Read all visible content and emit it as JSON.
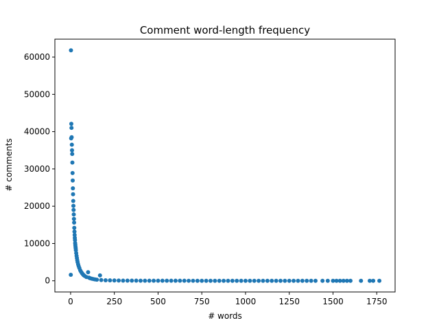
{
  "chart_data": {
    "type": "scatter",
    "title": "Comment word-length frequency",
    "xlabel": "# words",
    "ylabel": "# comments",
    "xlim": [
      -90,
      1855
    ],
    "ylim": [
      -3000,
      64800
    ],
    "xticks": [
      0,
      250,
      500,
      750,
      1000,
      1250,
      1500,
      1750
    ],
    "yticks": [
      0,
      10000,
      20000,
      30000,
      40000,
      50000,
      60000
    ],
    "grid": false,
    "marker_color": "#1f77b4",
    "series": [
      {
        "points": [
          [
            1,
            1600
          ],
          [
            2,
            61800
          ],
          [
            3,
            38200
          ],
          [
            4,
            42100
          ],
          [
            5,
            41000
          ],
          [
            6,
            38500
          ],
          [
            7,
            36500
          ],
          [
            8,
            35000
          ],
          [
            9,
            34000
          ],
          [
            10,
            31700
          ],
          [
            11,
            28900
          ],
          [
            12,
            26900
          ],
          [
            13,
            24800
          ],
          [
            14,
            23200
          ],
          [
            15,
            21400
          ],
          [
            16,
            20100
          ],
          [
            17,
            19000
          ],
          [
            18,
            17800
          ],
          [
            19,
            16600
          ],
          [
            20,
            15600
          ],
          [
            21,
            14200
          ],
          [
            22,
            13200
          ],
          [
            23,
            12300
          ],
          [
            24,
            11500
          ],
          [
            25,
            10900
          ],
          [
            26,
            10100
          ],
          [
            27,
            9600
          ],
          [
            28,
            9100
          ],
          [
            29,
            8700
          ],
          [
            30,
            8200
          ],
          [
            32,
            7400
          ],
          [
            34,
            6700
          ],
          [
            36,
            6100
          ],
          [
            38,
            5500
          ],
          [
            40,
            5000
          ],
          [
            43,
            4400
          ],
          [
            46,
            3900
          ],
          [
            50,
            3400
          ],
          [
            55,
            2800
          ],
          [
            60,
            2400
          ],
          [
            65,
            2050
          ],
          [
            70,
            1750
          ],
          [
            75,
            1500
          ],
          [
            80,
            1300
          ],
          [
            90,
            1000
          ],
          [
            100,
            2300
          ],
          [
            105,
            850
          ],
          [
            110,
            700
          ],
          [
            120,
            560
          ],
          [
            130,
            450
          ],
          [
            140,
            360
          ],
          [
            150,
            300
          ],
          [
            168,
            1450
          ],
          [
            175,
            200
          ],
          [
            200,
            140
          ],
          [
            225,
            100
          ],
          [
            250,
            80
          ],
          [
            275,
            62
          ],
          [
            300,
            50
          ],
          [
            325,
            42
          ],
          [
            350,
            35
          ],
          [
            375,
            30
          ],
          [
            400,
            25
          ],
          [
            425,
            21
          ],
          [
            450,
            18
          ],
          [
            475,
            15
          ],
          [
            500,
            13
          ],
          [
            525,
            11
          ],
          [
            550,
            10
          ],
          [
            575,
            9
          ],
          [
            600,
            8
          ],
          [
            625,
            7
          ],
          [
            650,
            6
          ],
          [
            675,
            5
          ],
          [
            700,
            5
          ],
          [
            725,
            4
          ],
          [
            750,
            4
          ],
          [
            775,
            3
          ],
          [
            800,
            3
          ],
          [
            825,
            3
          ],
          [
            850,
            2
          ],
          [
            875,
            2
          ],
          [
            900,
            2
          ],
          [
            925,
            2
          ],
          [
            950,
            2
          ],
          [
            975,
            2
          ],
          [
            1000,
            1
          ],
          [
            1025,
            1
          ],
          [
            1050,
            1
          ],
          [
            1075,
            1
          ],
          [
            1100,
            1
          ],
          [
            1125,
            1
          ],
          [
            1150,
            1
          ],
          [
            1175,
            1
          ],
          [
            1200,
            1
          ],
          [
            1225,
            1
          ],
          [
            1250,
            1
          ],
          [
            1275,
            1
          ],
          [
            1300,
            1
          ],
          [
            1325,
            1
          ],
          [
            1350,
            1
          ],
          [
            1375,
            1
          ],
          [
            1400,
            1
          ],
          [
            1440,
            1
          ],
          [
            1470,
            1
          ],
          [
            1500,
            1
          ],
          [
            1520,
            1
          ],
          [
            1540,
            1
          ],
          [
            1560,
            1
          ],
          [
            1580,
            1
          ],
          [
            1600,
            1
          ],
          [
            1660,
            1
          ],
          [
            1710,
            1
          ],
          [
            1730,
            1
          ],
          [
            1765,
            1
          ]
        ]
      }
    ]
  }
}
